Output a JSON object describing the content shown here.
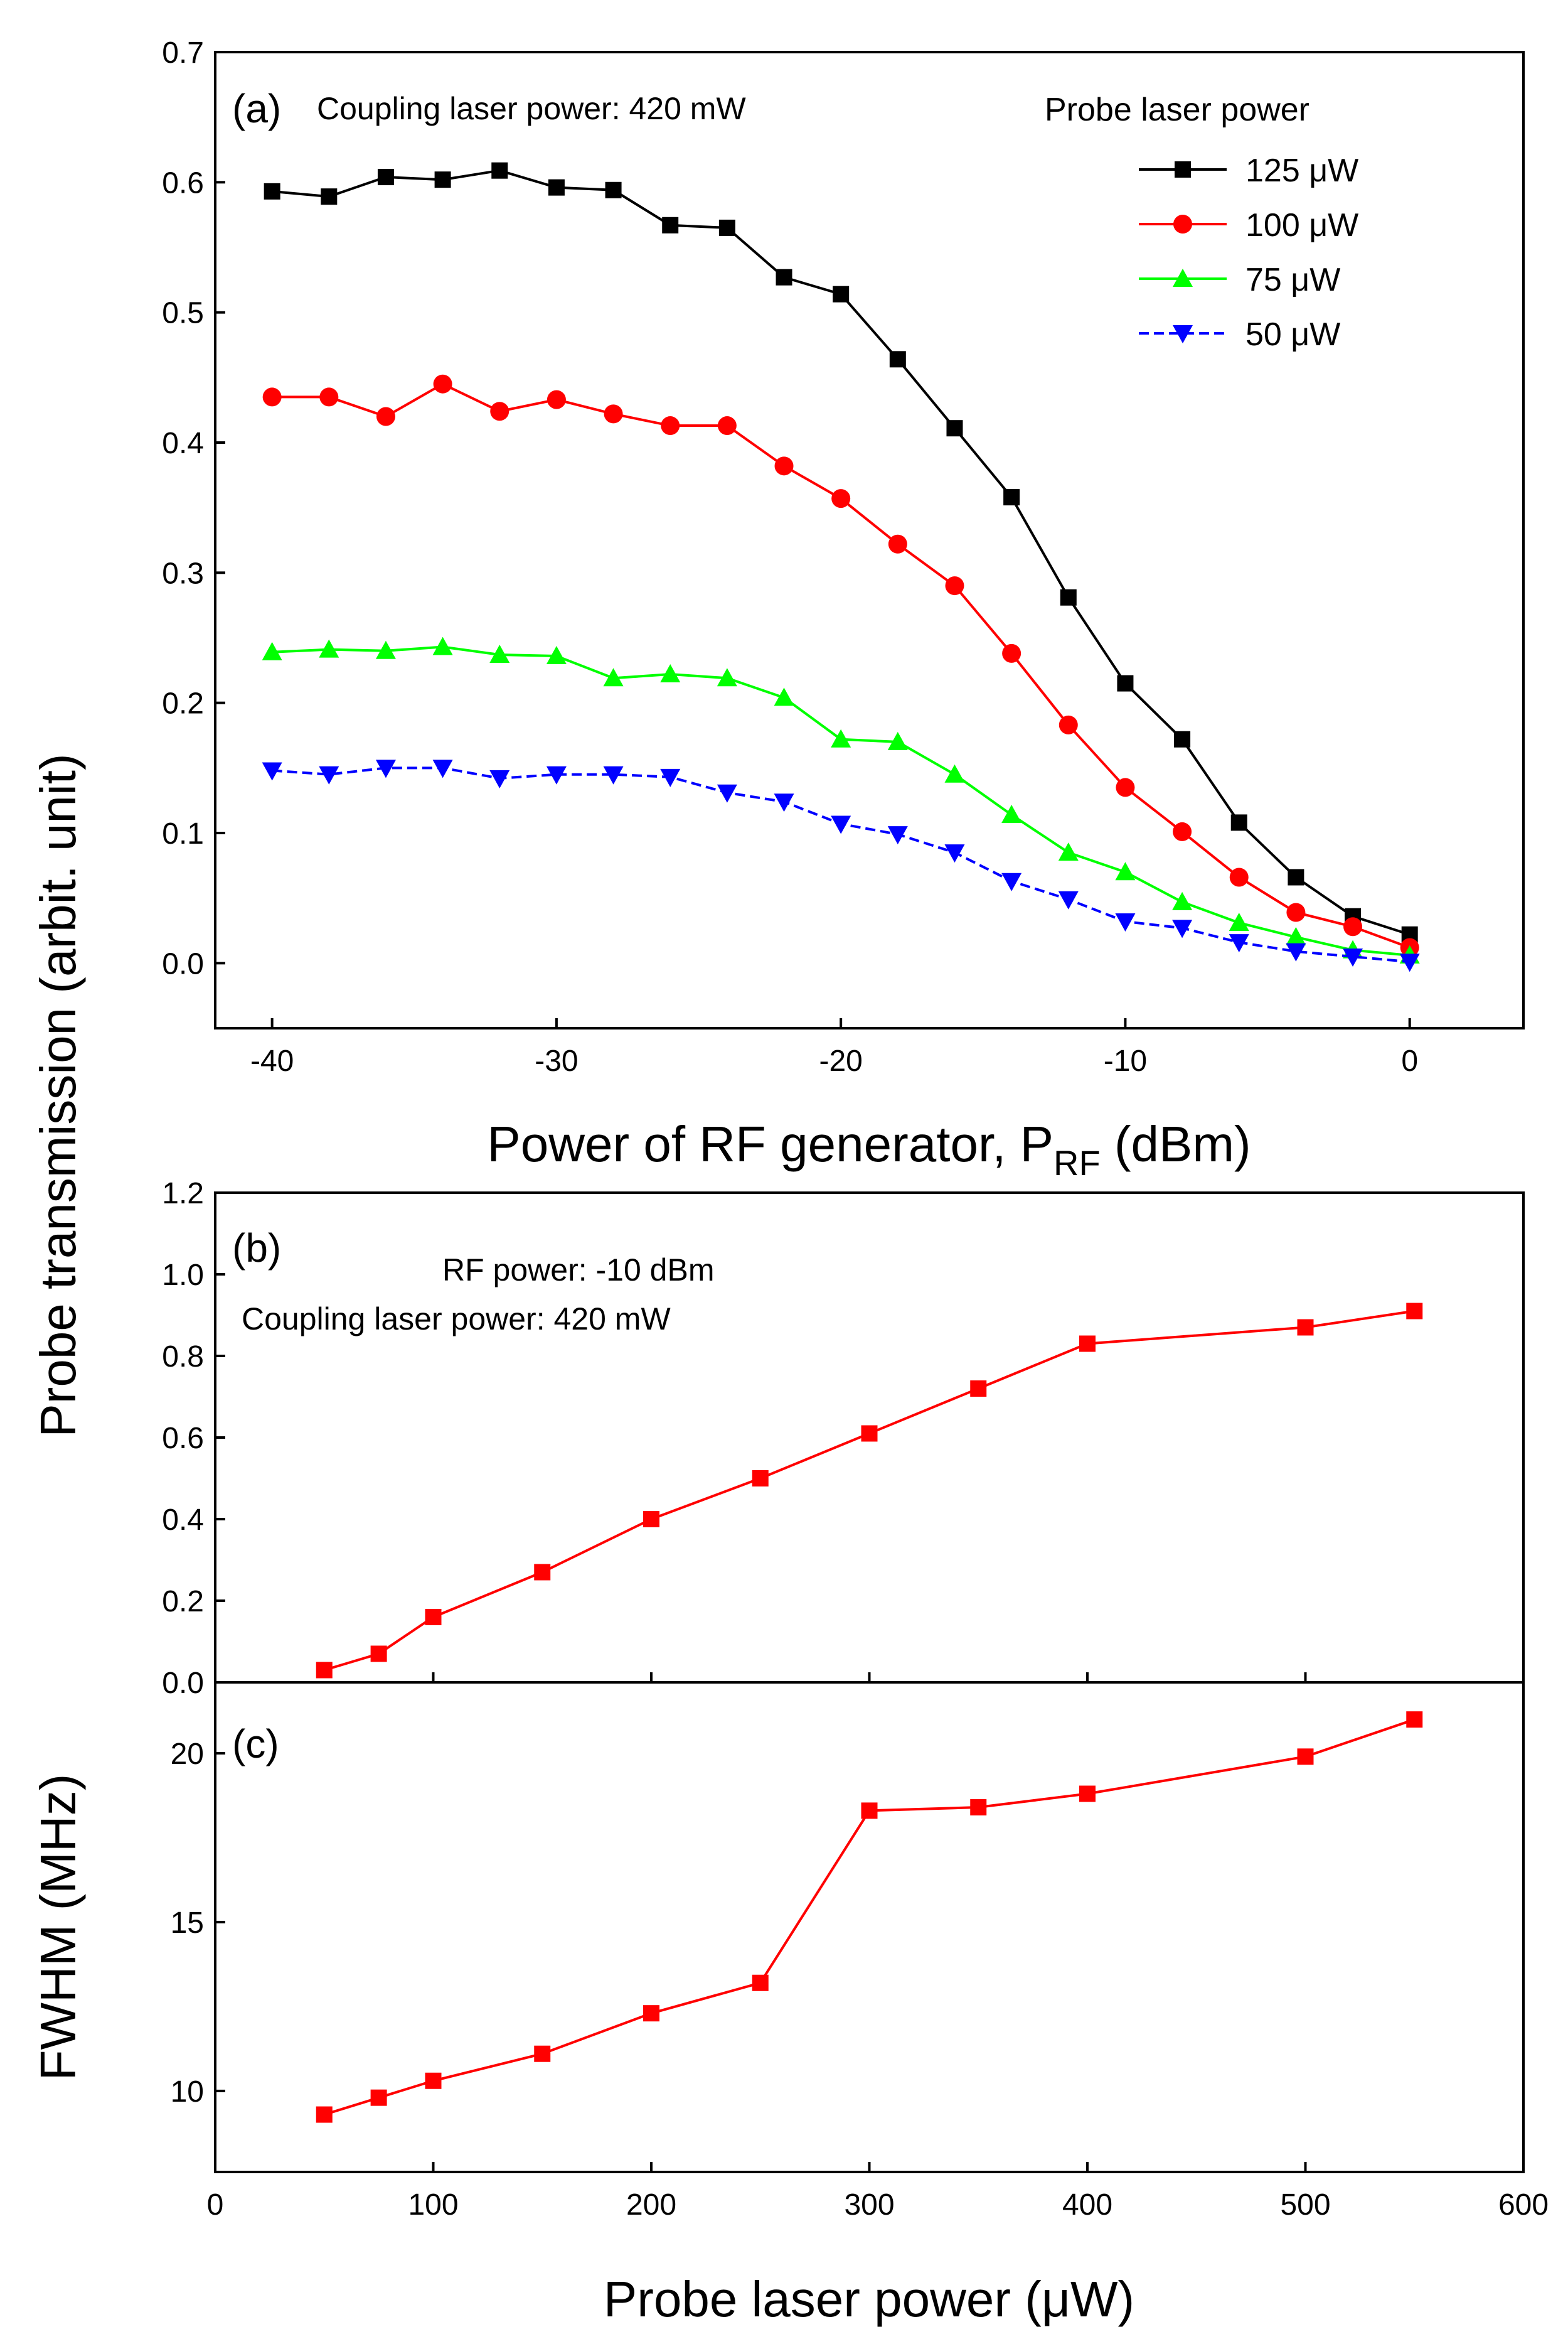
{
  "colors": {
    "black": "#000000",
    "red": "#ff0000",
    "green": "#00ff00",
    "blue": "#0000ff"
  },
  "chart_data": [
    {
      "type": "line",
      "panel_label": "(a)",
      "annotation": "Coupling laser power: 420 mW",
      "legend_title": "Probe laser power",
      "xlabel": "Power of RF generator, P",
      "xlabel_sub": "RF",
      "xlabel_suffix": " (dBm)",
      "ylabel": "Probe transmission (arbit. unit)",
      "xlim": [
        -42,
        4
      ],
      "ylim": [
        -0.05,
        0.7
      ],
      "xticks": [
        -40,
        -30,
        -20,
        -10,
        0
      ],
      "yticks": [
        0.0,
        0.1,
        0.2,
        0.3,
        0.4,
        0.5,
        0.6,
        0.7
      ],
      "x": [
        -40,
        -38,
        -36,
        -34,
        -32,
        -30,
        -28,
        -26,
        -24,
        -22,
        -20,
        -18,
        -16,
        -14,
        -12,
        -10,
        -8,
        -6,
        -4,
        -2,
        0
      ],
      "series": [
        {
          "name": "125 μW",
          "color": "#000000",
          "marker": "square",
          "dash": false,
          "values": [
            0.593,
            0.589,
            0.604,
            0.602,
            0.609,
            0.596,
            0.594,
            0.567,
            0.565,
            0.527,
            0.514,
            0.464,
            0.411,
            0.358,
            0.281,
            0.215,
            0.172,
            0.108,
            0.066,
            0.036,
            0.022
          ]
        },
        {
          "name": "100 μW",
          "color": "#ff0000",
          "marker": "circle",
          "dash": false,
          "values": [
            0.435,
            0.435,
            0.42,
            0.445,
            0.424,
            0.433,
            0.422,
            0.413,
            0.413,
            0.382,
            0.357,
            0.322,
            0.29,
            0.238,
            0.183,
            0.135,
            0.101,
            0.066,
            0.039,
            0.028,
            0.012
          ]
        },
        {
          "name": "75 μW",
          "color": "#00ff00",
          "marker": "triangle-up",
          "dash": false,
          "values": [
            0.239,
            0.241,
            0.24,
            0.243,
            0.237,
            0.236,
            0.219,
            0.222,
            0.219,
            0.204,
            0.172,
            0.17,
            0.145,
            0.114,
            0.085,
            0.07,
            0.047,
            0.031,
            0.02,
            0.01,
            0.006
          ]
        },
        {
          "name": "50 μW",
          "color": "#0000ff",
          "marker": "triangle-down",
          "dash": true,
          "values": [
            0.148,
            0.145,
            0.15,
            0.15,
            0.142,
            0.145,
            0.145,
            0.143,
            0.131,
            0.124,
            0.107,
            0.099,
            0.085,
            0.063,
            0.049,
            0.032,
            0.027,
            0.016,
            0.009,
            0.005,
            0.001
          ]
        }
      ]
    },
    {
      "type": "line",
      "panel_label": "(b)",
      "annotations": [
        "RF power: -10 dBm",
        "Coupling laser power: 420 mW"
      ],
      "ylabel": "Probe transmission (arbit. unit)",
      "xlim": [
        0,
        600
      ],
      "ylim": [
        0.0,
        1.2
      ],
      "yticks": [
        0.0,
        0.2,
        0.4,
        0.6,
        0.8,
        1.0,
        1.2
      ],
      "x": [
        50,
        75,
        100,
        150,
        200,
        250,
        300,
        350,
        400,
        500,
        550
      ],
      "series": [
        {
          "name": "Probe transmission",
          "color": "#ff0000",
          "marker": "square",
          "values": [
            0.03,
            0.07,
            0.16,
            0.27,
            0.4,
            0.5,
            0.61,
            0.72,
            0.83,
            0.87,
            0.91
          ]
        }
      ]
    },
    {
      "type": "line",
      "panel_label": "(c)",
      "xlabel": "Probe laser power (μW)",
      "ylabel": "FWHM (MHz)",
      "xlim": [
        0,
        600
      ],
      "ylim": [
        7.6,
        22.1
      ],
      "xticks": [
        0,
        100,
        200,
        300,
        400,
        500,
        600
      ],
      "yticks": [
        10,
        15,
        20
      ],
      "x": [
        50,
        75,
        100,
        150,
        200,
        250,
        300,
        350,
        400,
        500,
        550
      ],
      "series": [
        {
          "name": "FWHM",
          "color": "#ff0000",
          "marker": "square",
          "values": [
            9.3,
            9.8,
            10.3,
            11.1,
            12.3,
            13.2,
            18.3,
            18.4,
            18.8,
            19.9,
            21.0
          ]
        }
      ]
    }
  ]
}
